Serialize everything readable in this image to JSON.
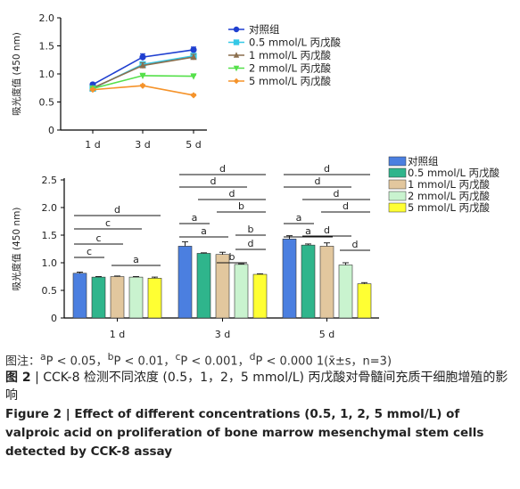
{
  "chart_data": [
    {
      "type": "line",
      "ylabel": "吸光度值 (450 nm)",
      "categories": [
        "1 d",
        "3 d",
        "5 d"
      ],
      "ylim": [
        0,
        2.0
      ],
      "yticks": [
        "0",
        "0.5",
        "1.0",
        "1.5",
        "2.0"
      ],
      "legend_position": "right",
      "series": [
        {
          "name": "对照组",
          "values": [
            0.81,
            1.3,
            1.43
          ],
          "errors": [
            0.03,
            0.06,
            0.05
          ],
          "color": "#1f3fd0",
          "marker": "circle"
        },
        {
          "name": "0.5 mmol/L 丙戊酸",
          "values": [
            0.74,
            1.17,
            1.32
          ],
          "errors": [
            0.02,
            0.04,
            0.04
          ],
          "color": "#35c8e6",
          "marker": "square"
        },
        {
          "name": "1 mmol/L 丙戊酸",
          "values": [
            0.75,
            1.15,
            1.3
          ],
          "errors": [
            0.02,
            0.05,
            0.05
          ],
          "color": "#8b6f4e",
          "marker": "triangle"
        },
        {
          "name": "2 mmol/L 丙戊酸",
          "values": [
            0.74,
            0.97,
            0.96
          ],
          "errors": [
            0.02,
            0.02,
            0.02
          ],
          "color": "#55e04a",
          "marker": "triangle-down"
        },
        {
          "name": "5 mmol/L 丙戊酸",
          "values": [
            0.72,
            0.79,
            0.62
          ],
          "errors": [
            0.02,
            0.02,
            0.02
          ],
          "color": "#f5932a",
          "marker": "diamond"
        }
      ]
    },
    {
      "type": "bar",
      "ylabel": "吸光度值 (450 nm)",
      "categories": [
        "1 d",
        "3 d",
        "5 d"
      ],
      "ylim": [
        0,
        2.5
      ],
      "yticks": [
        "0",
        "0.5",
        "1.0",
        "1.5",
        "2.0",
        "2.5"
      ],
      "legend_position": "top-right",
      "series": [
        {
          "name": "对照组",
          "values": [
            0.81,
            1.3,
            1.43
          ],
          "errors": [
            0.02,
            0.08,
            0.06
          ],
          "color": "#4b7fe0"
        },
        {
          "name": "0.5 mmol/L 丙戊酸",
          "values": [
            0.74,
            1.17,
            1.32
          ],
          "errors": [
            0.01,
            0.01,
            0.02
          ],
          "color": "#2fb58c"
        },
        {
          "name": "1 mmol/L 丙戊酸",
          "values": [
            0.75,
            1.15,
            1.3
          ],
          "errors": [
            0.01,
            0.04,
            0.06
          ],
          "color": "#e2c79e"
        },
        {
          "name": "2 mmol/L 丙戊酸",
          "values": [
            0.74,
            0.97,
            0.96
          ],
          "errors": [
            0.01,
            0.01,
            0.04
          ],
          "color": "#c9f3cf"
        },
        {
          "name": "5 mmol/L 丙戊酸",
          "values": [
            0.72,
            0.79,
            0.62
          ],
          "errors": [
            0.02,
            0.01,
            0.02
          ],
          "color": "#ffff33"
        }
      ],
      "significance": [
        {
          "group": 0,
          "from": 0,
          "to": 4,
          "label": "d"
        },
        {
          "group": 0,
          "from": 0,
          "to": 3,
          "label": "c"
        },
        {
          "group": 0,
          "from": 0,
          "to": 2,
          "label": "c"
        },
        {
          "group": 0,
          "from": 0,
          "to": 1,
          "label": "c"
        },
        {
          "group": 0,
          "from": 2,
          "to": 4,
          "label": "a"
        },
        {
          "group": 1,
          "from": 0,
          "to": 4,
          "label": "d"
        },
        {
          "group": 1,
          "from": 0,
          "to": 3,
          "label": "d"
        },
        {
          "group": 1,
          "from": 1,
          "to": 4,
          "label": "d"
        },
        {
          "group": 1,
          "from": 2,
          "to": 4,
          "label": "b"
        },
        {
          "group": 1,
          "from": 0,
          "to": 1,
          "label": "a"
        },
        {
          "group": 1,
          "from": 0,
          "to": 2,
          "label": "a"
        },
        {
          "group": 1,
          "from": 3,
          "to": 4,
          "label": "d"
        },
        {
          "group": 1,
          "from": 2,
          "to": 3,
          "label": "b"
        },
        {
          "group": 1,
          "from": 3,
          "to": 4,
          "label": "b"
        },
        {
          "group": 2,
          "from": 0,
          "to": 4,
          "label": "d"
        },
        {
          "group": 2,
          "from": 0,
          "to": 3,
          "label": "d"
        },
        {
          "group": 2,
          "from": 1,
          "to": 4,
          "label": "d"
        },
        {
          "group": 2,
          "from": 2,
          "to": 4,
          "label": "d"
        },
        {
          "group": 2,
          "from": 0,
          "to": 1,
          "label": "a"
        },
        {
          "group": 2,
          "from": 0,
          "to": 2,
          "label": "a"
        },
        {
          "group": 2,
          "from": 1,
          "to": 3,
          "label": "d"
        },
        {
          "group": 2,
          "from": 3,
          "to": 4,
          "label": "d"
        }
      ]
    }
  ],
  "caption": {
    "note_prefix": "图注：",
    "note_a": "a",
    "note_a_text": "P < 0.05，",
    "note_b": "b",
    "note_b_text": "P < 0.01，",
    "note_c": "c",
    "note_c_text": "P < 0.001，",
    "note_d": "d",
    "note_d_text": "P < 0.000 1(x̄±s，n=3)",
    "cn_label": "图 2",
    "cn_sep": " | ",
    "cn_text": "CCK-8 检测不同浓度 (0.5，1，2，5 mmol/L) 丙戊酸对骨髓间充质干细胞增殖的影响",
    "en_label": "Figure 2",
    "en_sep": " | ",
    "en_text": "Effect of different concentrations (0.5, 1, 2, 5 mmol/L) of valproic acid on proliferation of bone marrow mesenchymal stem cells detected by CCK-8 assay"
  }
}
